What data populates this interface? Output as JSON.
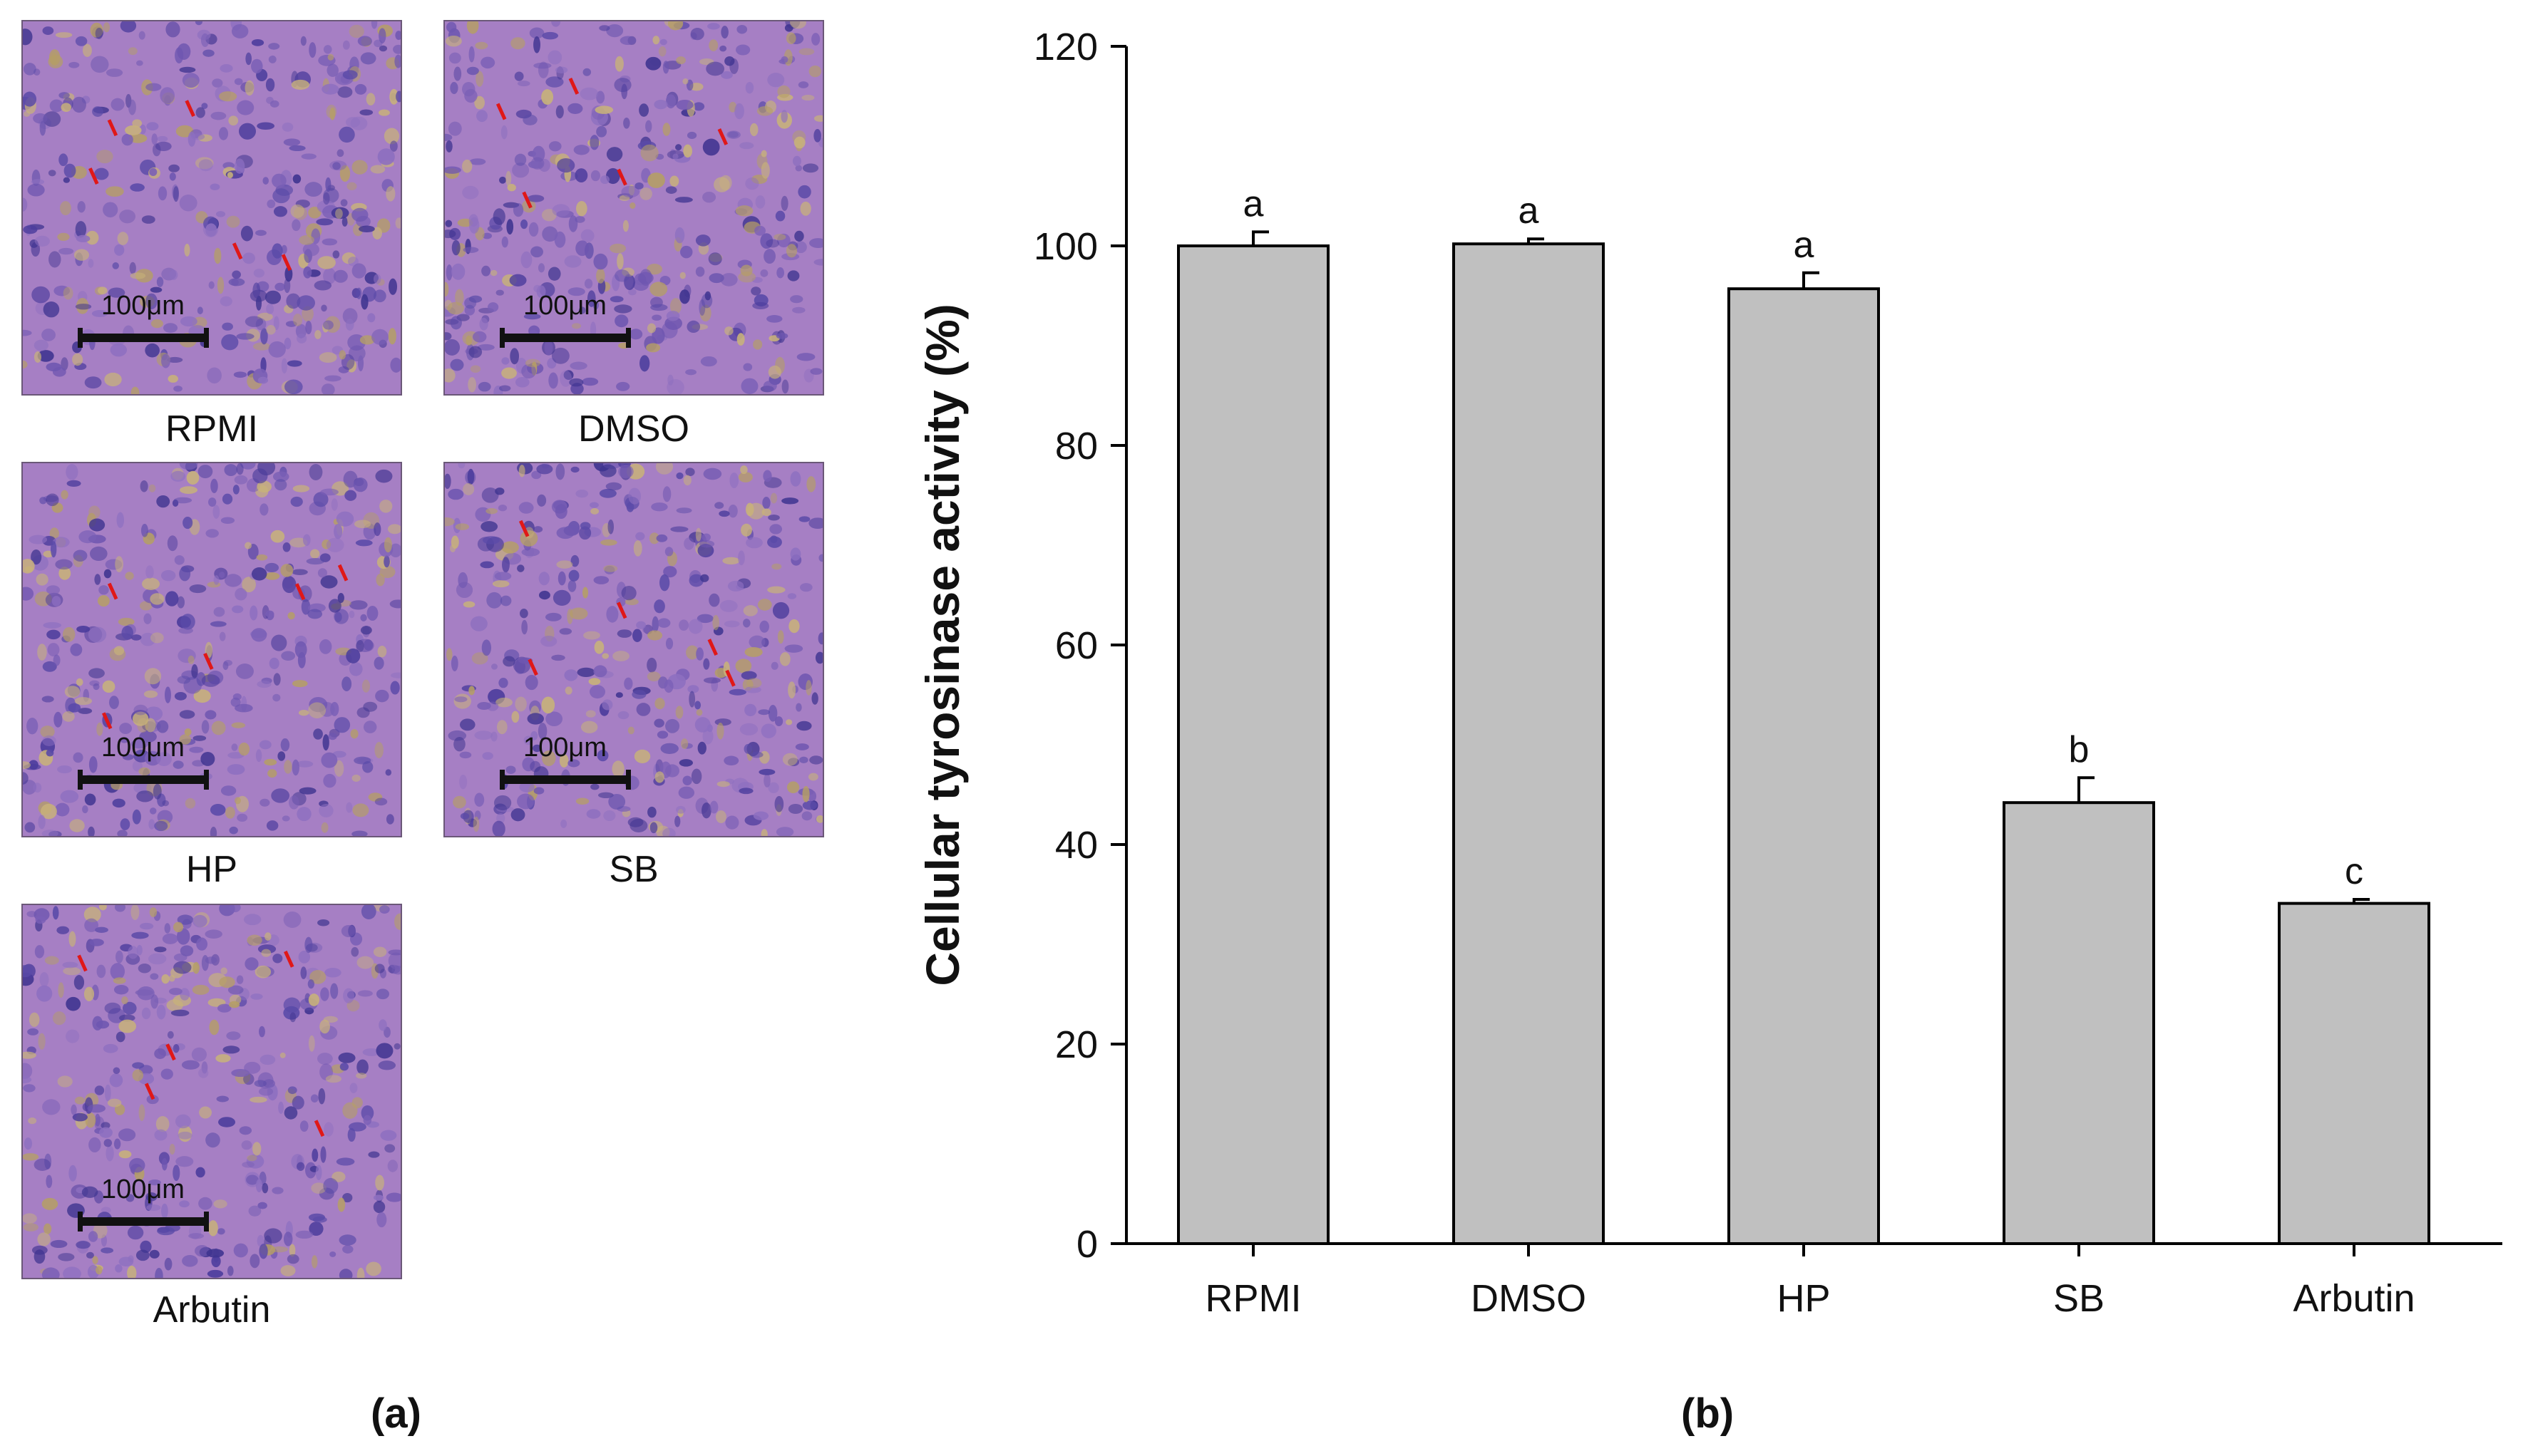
{
  "panel_a": {
    "label": "(a)",
    "images": [
      {
        "label": "RPMI",
        "scale": "100μm"
      },
      {
        "label": "DMSO",
        "scale": "100μm"
      },
      {
        "label": "HP",
        "scale": "100μm"
      },
      {
        "label": "SB",
        "scale": "100μm"
      },
      {
        "label": "Arbutin",
        "scale": "100μm"
      }
    ]
  },
  "panel_b": {
    "label": "(b)"
  },
  "chart_data": {
    "type": "bar",
    "categories": [
      "RPMI",
      "DMSO",
      "HP",
      "SB",
      "Arbutin"
    ],
    "values": [
      100.0,
      100.2,
      95.7,
      44.2,
      34.1
    ],
    "errors": [
      1.4,
      0.5,
      1.6,
      2.5,
      0.4
    ],
    "significance": [
      "a",
      "a",
      "a",
      "b",
      "c"
    ],
    "ylabel": "Cellular tyrosinase activity (%)",
    "xlabel": "",
    "ylim": [
      0,
      120
    ],
    "yticks": [
      0,
      20,
      40,
      60,
      80,
      100,
      120
    ],
    "grid": false,
    "bar_color": "#c0c0c0",
    "bar_edge_color": "#000000"
  }
}
